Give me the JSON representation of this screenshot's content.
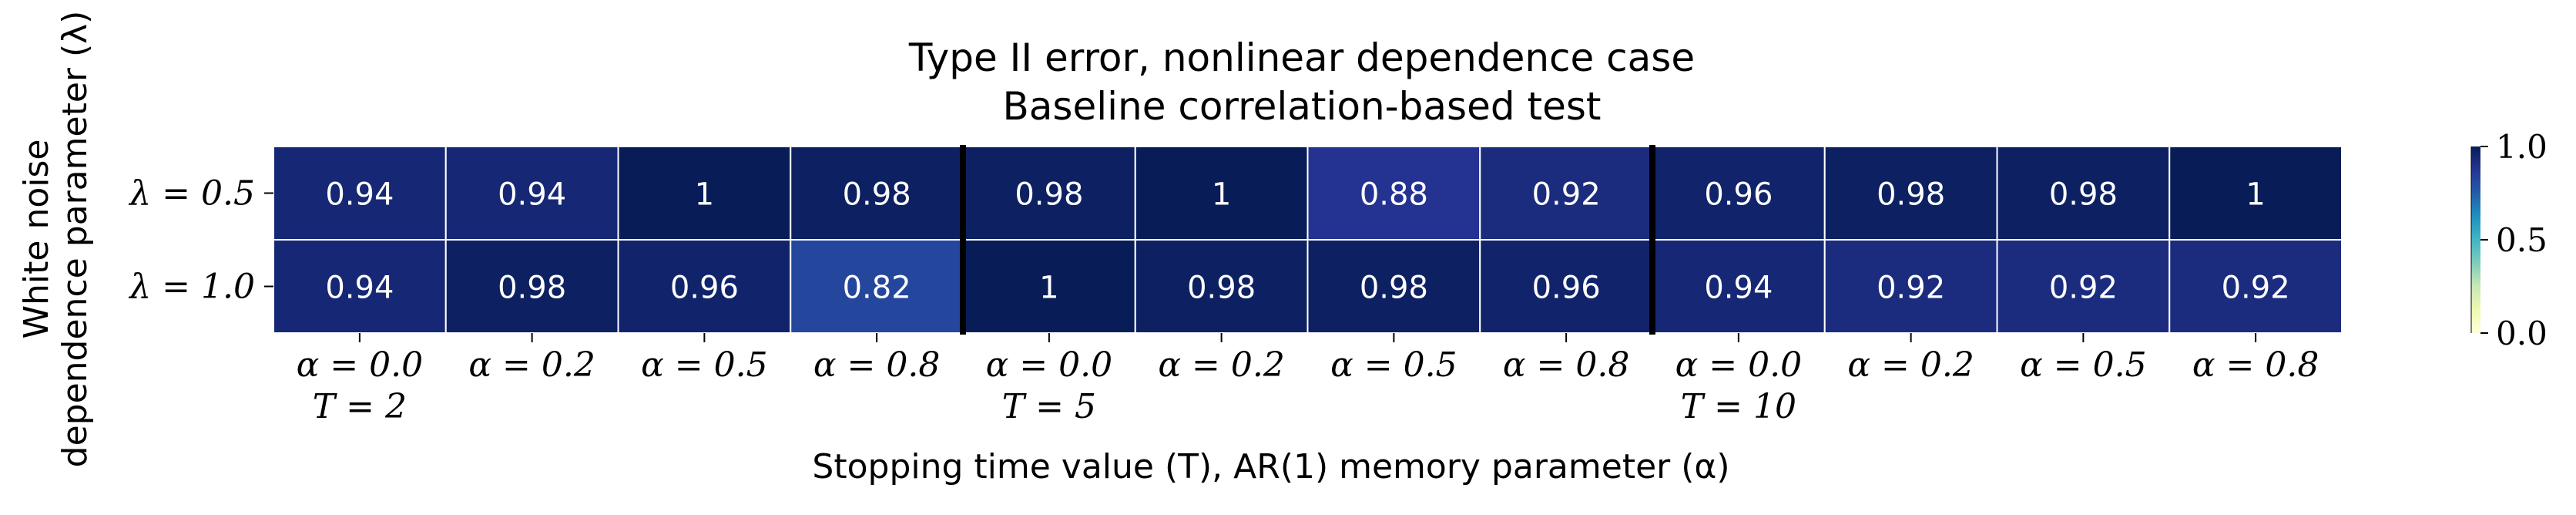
{
  "chart_data": {
    "type": "heatmap",
    "title": "Type II error, nonlinear dependence case",
    "subtitle": "Baseline correlation-based test",
    "xlabel": "Stopping time value (T), AR(1) memory parameter (α)",
    "ylabel": "White noise dependence parameter (λ)",
    "ylabel_lines": [
      "White noise",
      "dependence parameter (λ)"
    ],
    "rows": [
      "λ = 0.5",
      "λ = 1.0"
    ],
    "columns": [
      "α = 0.0",
      "α = 0.2",
      "α = 0.5",
      "α = 0.8",
      "α = 0.0",
      "α = 0.2",
      "α = 0.5",
      "α = 0.8",
      "α = 0.0",
      "α = 0.2",
      "α = 0.5",
      "α = 0.8"
    ],
    "group_labels": [
      "T = 2",
      "T = 5",
      "T = 10"
    ],
    "values": [
      [
        0.94,
        0.94,
        1,
        0.98,
        0.98,
        1,
        0.88,
        0.92,
        0.96,
        0.98,
        0.98,
        1
      ],
      [
        0.94,
        0.98,
        0.96,
        0.82,
        1,
        0.98,
        0.98,
        0.96,
        0.94,
        0.92,
        0.92,
        0.92
      ]
    ],
    "colorbar": {
      "min": 0.0,
      "max": 1.0,
      "ticks": [
        "0.0",
        "0.5",
        "1.0"
      ],
      "colormap": "YlGnBu"
    },
    "group_separators": "thick black vertical lines between T groups"
  }
}
